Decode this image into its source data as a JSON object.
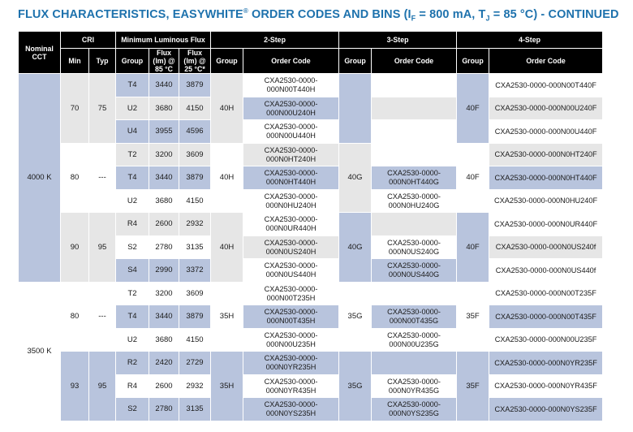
{
  "title": {
    "text_main": "FLUX CHARACTERISTICS, EASYWHITE",
    "reg": "®",
    "text_mid": " ORDER CODES AND BINS (I",
    "sub_f": "F",
    "text_eq1": " = 800 mA, T",
    "sub_j": "J",
    "text_end": " = 85 °C) - CONTINUED"
  },
  "headers": {
    "nominal_cct": "Nominal CCT",
    "cri": "CRI",
    "min_flux": "Minimum Luminous Flux",
    "step2": "2-Step",
    "step3": "3-Step",
    "step4": "4-Step",
    "min": "Min",
    "typ": "Typ",
    "group": "Group",
    "flux85": "Flux (lm) @ 85 °C",
    "flux25": "Flux (lm) @ 25 °C*",
    "group2": "Group",
    "order_code2": "Order Code",
    "group3": "Group",
    "order_code3": "Order Code",
    "group4": "Group",
    "order_code4": "Order Code"
  },
  "rows": [
    {
      "cct": "4000 K",
      "cri_min": "70",
      "cri_typ": "75",
      "group": "T4",
      "flux85": "3440",
      "flux25": "3879",
      "g2": "40H",
      "code2": "CXA2530-0000-000N00T440H",
      "g3": "",
      "code3": "",
      "g4": "40F",
      "code4": "CXA2530-0000-000N00T440F"
    },
    {
      "group": "U2",
      "flux85": "3680",
      "flux25": "4150",
      "code2": "CXA2530-0000-000N00U240H",
      "code3": "",
      "code4": "CXA2530-0000-000N00U240F"
    },
    {
      "group": "U4",
      "flux85": "3955",
      "flux25": "4596",
      "code2": "CXA2530-0000-000N00U440H",
      "code3": "",
      "code4": "CXA2530-0000-000N00U440F"
    },
    {
      "cri_min": "80",
      "cri_typ": "---",
      "group": "T2",
      "flux85": "3200",
      "flux25": "3609",
      "g2": "40H",
      "code2": "CXA2530-0000-000N0HT240H",
      "g3": "40G",
      "code3": "",
      "g4": "40F",
      "code4": "CXA2530-0000-000N0HT240F"
    },
    {
      "group": "T4",
      "flux85": "3440",
      "flux25": "3879",
      "code2": "CXA2530-0000-000N0HT440H",
      "code3": "CXA2530-0000-000N0HT440G",
      "code4": "CXA2530-0000-000N0HT440F"
    },
    {
      "group": "U2",
      "flux85": "3680",
      "flux25": "4150",
      "code2": "CXA2530-0000-000N0HU240H",
      "code3": "CXA2530-0000-000N0HU240G",
      "code4": "CXA2530-0000-000N0HU240F"
    },
    {
      "cri_min": "90",
      "cri_typ": "95",
      "group": "R4",
      "flux85": "2600",
      "flux25": "2932",
      "g2": "40H",
      "code2": "CXA2530-0000-000N0UR440H",
      "g3": "40G",
      "code3": "",
      "g4": "40F",
      "code4": "CXA2530-0000-000N0UR440F"
    },
    {
      "group": "S2",
      "flux85": "2780",
      "flux25": "3135",
      "code2": "CXA2530-0000-000N0US240H",
      "code3": "CXA2530-0000-000N0US240G",
      "code4": "CXA2530-0000-000N0US240f"
    },
    {
      "group": "S4",
      "flux85": "2990",
      "flux25": "3372",
      "code2": "CXA2530-0000-000N0US440H",
      "code3": "CXA2530-0000-000N0US440G",
      "code4": "CXA2530-0000-000N0US440f"
    },
    {
      "cct": "3500 K",
      "cri_min": "80",
      "cri_typ": "---",
      "group": "T2",
      "flux85": "3200",
      "flux25": "3609",
      "g2": "35H",
      "code2": "CXA2530-0000-000N00T235H",
      "g3": "35G",
      "code3": "",
      "g4": "35F",
      "code4": "CXA2530-0000-000N00T235F"
    },
    {
      "group": "T4",
      "flux85": "3440",
      "flux25": "3879",
      "code2": "CXA2530-0000-000N00T435H",
      "code3": "CXA2530-0000-000N00T435G",
      "code4": "CXA2530-0000-000N00T435F"
    },
    {
      "group": "U2",
      "flux85": "3680",
      "flux25": "4150",
      "code2": "CXA2530-0000-000N00U235H",
      "code3": "CXA2530-0000-000N00U235G",
      "code4": "CXA2530-0000-000N00U235F"
    },
    {
      "cri_min": "93",
      "cri_typ": "95",
      "group": "R2",
      "flux85": "2420",
      "flux25": "2729",
      "g2": "35H",
      "code2": "CXA2530-0000-000N0YR235H",
      "g3": "35G",
      "code3": "",
      "g4": "35F",
      "code4": "CXA2530-0000-000N0YR235F"
    },
    {
      "group": "R4",
      "flux85": "2600",
      "flux25": "2932",
      "code2": "CXA2530-0000-000N0YR435H",
      "code3": "CXA2530-0000-000N0YR435G",
      "code4": "CXA2530-0000-000N0YR435F"
    },
    {
      "group": "S2",
      "flux85": "2780",
      "flux25": "3135",
      "code2": "CXA2530-0000-000N0YS235H",
      "code3": "CXA2530-0000-000N0YS235G",
      "code4": "CXA2530-0000-000N0YS235F"
    }
  ],
  "colors": {
    "title": "#1e72ad",
    "header_bg": "#000000",
    "band_blue": "#b8c4dd",
    "band_grey": "#e6e6e6"
  }
}
